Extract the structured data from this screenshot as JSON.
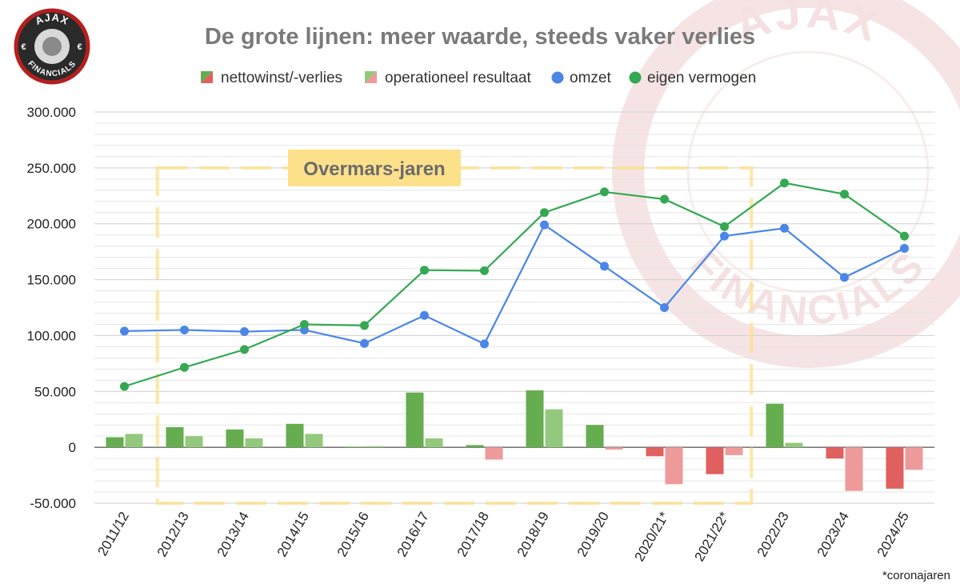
{
  "logo": {
    "top_text": "AJAX",
    "bottom_text": "FINANCIALS",
    "currency_left": "€",
    "currency_right": "€"
  },
  "watermark": {
    "top_text": "AJAX",
    "bottom_text": "FINANCIALS"
  },
  "highlight": {
    "label": "Overmars-jaren",
    "start_category": "2012/13",
    "end_category": "2021/22*",
    "color": "#fde08a"
  },
  "footnote": "*coronajaren",
  "colors": {
    "nettowinst_pos": "#65ad4f",
    "nettowinst_neg": "#e06060",
    "operationeel_pos": "#93c97c",
    "operationeel_neg": "#ee9a9a",
    "omzet": "#4a86e8",
    "eigen_vermogen": "#34a853",
    "grid": "#d9d9d9",
    "zero": "#555555"
  },
  "chart_data": {
    "type": "bar",
    "title": "De grote lijnen: meer waarde, steeds vaker verlies",
    "xlabel": "",
    "ylabel": "",
    "ylim": [
      -50000,
      300000
    ],
    "ytick_labels": [
      "-50.000",
      "0",
      "50.000",
      "100.000",
      "150.000",
      "200.000",
      "250.000",
      "300.000"
    ],
    "ytick_values": [
      -50000,
      0,
      50000,
      100000,
      150000,
      200000,
      250000,
      300000
    ],
    "grid": true,
    "legend_position": "top",
    "categories": [
      "2011/12",
      "2012/13",
      "2013/14",
      "2014/15",
      "2015/16",
      "2016/17",
      "2017/18",
      "2018/19",
      "2019/20",
      "2020/21*",
      "2021/22*",
      "2022/23",
      "2023/24",
      "2024/25"
    ],
    "series": [
      {
        "name": "nettowinst/-verlies",
        "kind": "bar",
        "values": [
          9000,
          18000,
          16000,
          21000,
          0,
          49000,
          2000,
          51000,
          20000,
          -8000,
          -24000,
          39000,
          -10000,
          -37000
        ]
      },
      {
        "name": "operationeel resultaat",
        "kind": "bar",
        "values": [
          12000,
          10000,
          8000,
          12000,
          1000,
          8000,
          -11000,
          34000,
          -2000,
          -33000,
          -7000,
          4000,
          -39000,
          -20000
        ]
      },
      {
        "name": "omzet",
        "kind": "line",
        "values": [
          104000,
          105000,
          103500,
          105000,
          93000,
          118000,
          92500,
          199000,
          162000,
          125000,
          189000,
          196000,
          152000,
          178000
        ]
      },
      {
        "name": "eigen vermogen",
        "kind": "line",
        "values": [
          54500,
          71500,
          87500,
          110000,
          109000,
          158500,
          158000,
          210000,
          228500,
          222000,
          197500,
          236500,
          226500,
          189000
        ]
      }
    ]
  }
}
